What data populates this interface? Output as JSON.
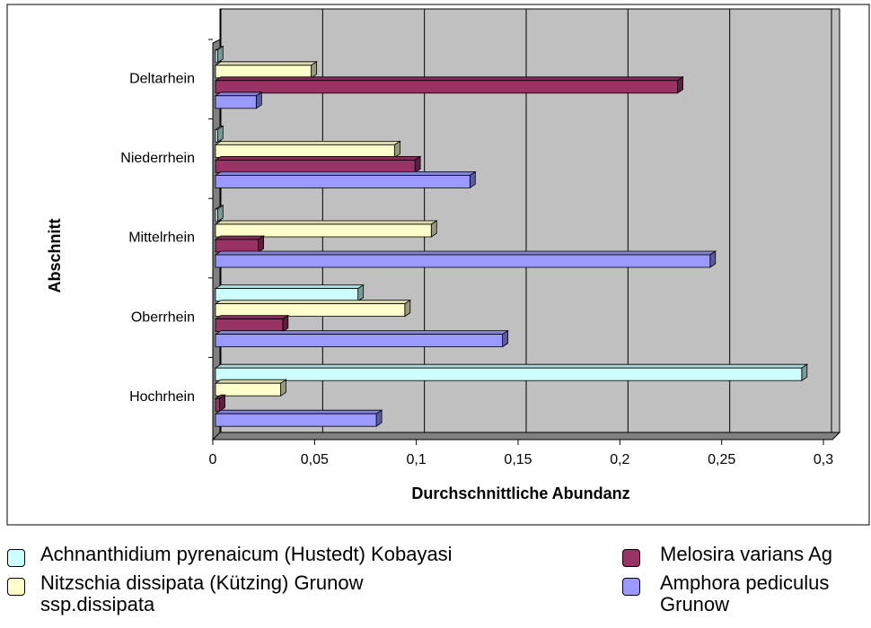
{
  "chart_data": {
    "type": "bar3d-horizontal",
    "x_label": "Durchschnittliche Abundanz",
    "y_label": "Abschnitt",
    "categories": [
      "Deltarhein",
      "Niederrhein",
      "Mittelrhein",
      "Oberrhein",
      "Hochrhein"
    ],
    "series": [
      {
        "name": "Achnanthidium pyrenaicum (Hustedt) Kobayasi",
        "color": "#ccffff",
        "values": [
          0.001,
          0.001,
          0.001,
          0.07,
          0.288
        ]
      },
      {
        "name": "Nitzschia dissipata (Kützing) Grunow ssp.dissipata",
        "color": "#ffffcc",
        "values": [
          0.047,
          0.088,
          0.106,
          0.093,
          0.032
        ]
      },
      {
        "name": "Melosira varians Ag",
        "color": "#993366",
        "values": [
          0.227,
          0.098,
          0.021,
          0.033,
          0.002
        ]
      },
      {
        "name": "Amphora pediculus Grunow",
        "color": "#9999ff",
        "values": [
          0.02,
          0.125,
          0.243,
          0.141,
          0.079
        ]
      }
    ],
    "xlim": [
      0,
      0.3
    ],
    "xticks": [
      0,
      {
        "value": 0.05,
        "label": "0,05"
      },
      {
        "value": 0.1,
        "label": "0,1"
      },
      {
        "value": 0.15,
        "label": "0,15"
      },
      {
        "value": 0.2,
        "label": "0,2"
      },
      {
        "value": 0.25,
        "label": "0,25"
      },
      {
        "value": 0.3,
        "label": "0,3"
      }
    ],
    "grid": true
  }
}
